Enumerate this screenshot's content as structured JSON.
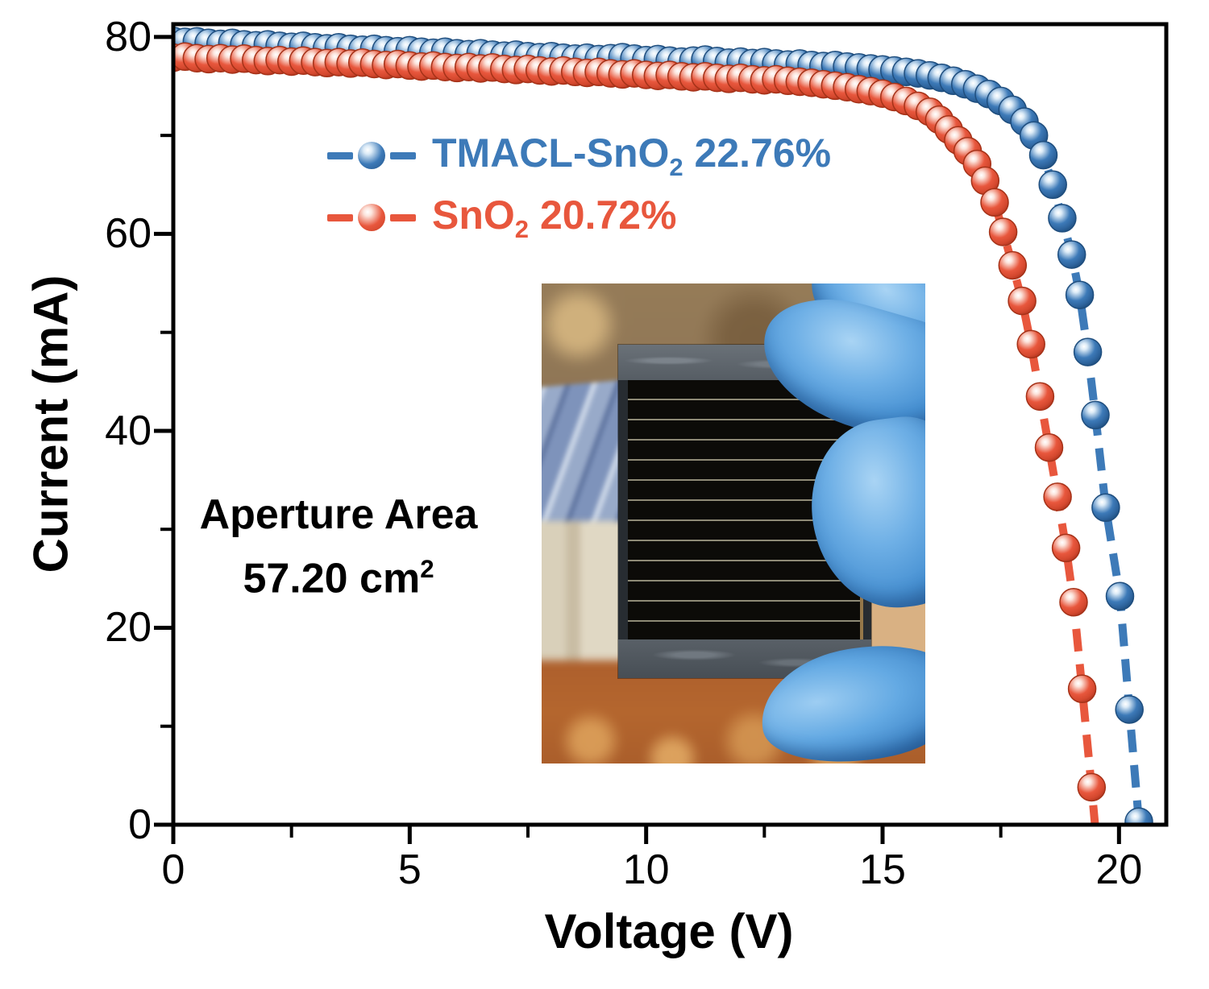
{
  "chart_data": {
    "type": "line",
    "title": "",
    "xlabel": "Voltage (V)",
    "ylabel": "Current (mA)",
    "xlim": [
      0,
      21
    ],
    "ylim": [
      0,
      81.3
    ],
    "x_ticks": [
      0,
      5,
      10,
      15,
      20
    ],
    "x_minor_ticks": [
      2.5,
      7.5,
      12.5,
      17.5
    ],
    "y_ticks": [
      0,
      20,
      40,
      60,
      80
    ],
    "y_minor_ticks": [
      10,
      30,
      50,
      70
    ],
    "grid": false,
    "legend_position": "upper-left-inside",
    "axis_color": "#000000",
    "background_color": "#ffffff",
    "series": [
      {
        "name": "TMACL-SnO2 22.76%",
        "label_main": "TMACL-SnO",
        "label_sub": "2",
        "label_tail": " 22.76%",
        "color": "#3d7ab8",
        "color_dark": "#1f4e7e",
        "gradient": [
          "#ffffff",
          "#dcebf7",
          "#3d7ab8",
          "#2d639c",
          "#1f4e7e"
        ],
        "marker": "sphere",
        "line_style": "dashed",
        "points": [
          [
            0,
            79.6
          ],
          [
            0.25,
            79.5
          ],
          [
            0.5,
            79.55
          ],
          [
            0.75,
            79.4
          ],
          [
            1,
            79.3
          ],
          [
            1.25,
            79.4
          ],
          [
            1.5,
            79.25
          ],
          [
            1.75,
            79.15
          ],
          [
            2,
            79.25
          ],
          [
            2.25,
            79.1
          ],
          [
            2.5,
            79.0
          ],
          [
            2.75,
            79.1
          ],
          [
            3,
            78.95
          ],
          [
            3.25,
            78.85
          ],
          [
            3.5,
            78.95
          ],
          [
            3.75,
            78.8
          ],
          [
            4,
            78.7
          ],
          [
            4.25,
            78.8
          ],
          [
            4.5,
            78.65
          ],
          [
            4.75,
            78.55
          ],
          [
            5,
            78.65
          ],
          [
            5.25,
            78.5
          ],
          [
            5.5,
            78.4
          ],
          [
            5.75,
            78.5
          ],
          [
            6,
            78.35
          ],
          [
            6.25,
            78.25
          ],
          [
            6.5,
            78.35
          ],
          [
            6.75,
            78.2
          ],
          [
            7,
            78.1
          ],
          [
            7.25,
            78.2
          ],
          [
            7.5,
            78.05
          ],
          [
            7.75,
            77.95
          ],
          [
            8,
            78.05
          ],
          [
            8.25,
            77.9
          ],
          [
            8.5,
            77.8
          ],
          [
            8.75,
            77.9
          ],
          [
            9,
            77.75
          ],
          [
            9.25,
            77.85
          ],
          [
            9.5,
            77.95
          ],
          [
            9.75,
            77.8
          ],
          [
            10,
            77.65
          ],
          [
            10.25,
            77.75
          ],
          [
            10.5,
            77.6
          ],
          [
            10.75,
            77.5
          ],
          [
            11,
            77.6
          ],
          [
            11.25,
            77.7
          ],
          [
            11.5,
            77.55
          ],
          [
            11.75,
            77.4
          ],
          [
            12,
            77.5
          ],
          [
            12.25,
            77.35
          ],
          [
            12.5,
            77.45
          ],
          [
            12.75,
            77.3
          ],
          [
            13,
            77.2
          ],
          [
            13.25,
            77.3
          ],
          [
            13.5,
            77.15
          ],
          [
            13.75,
            77.05
          ],
          [
            14,
            77.15
          ],
          [
            14.25,
            77.0
          ],
          [
            14.5,
            76.9
          ],
          [
            14.75,
            76.8
          ],
          [
            15,
            76.7
          ],
          [
            15.25,
            76.6
          ],
          [
            15.5,
            76.45
          ],
          [
            15.75,
            76.3
          ],
          [
            16,
            76.1
          ],
          [
            16.25,
            75.85
          ],
          [
            16.5,
            75.55
          ],
          [
            16.75,
            75.2
          ],
          [
            17,
            74.75
          ],
          [
            17.25,
            74.2
          ],
          [
            17.5,
            73.5
          ],
          [
            17.75,
            72.6
          ],
          [
            18,
            71.4
          ],
          [
            18.2,
            70.0
          ],
          [
            18.4,
            68.0
          ],
          [
            18.6,
            65.0
          ],
          [
            18.8,
            61.6
          ],
          [
            19,
            57.9
          ],
          [
            19.17,
            53.8
          ],
          [
            19.34,
            48.0
          ],
          [
            19.5,
            41.6
          ],
          [
            19.72,
            32.2
          ],
          [
            20.02,
            23.2
          ],
          [
            20.22,
            11.7
          ],
          [
            20.42,
            0.3
          ]
        ]
      },
      {
        "name": "SnO2 20.72%",
        "label_main": "SnO",
        "label_sub": "2",
        "label_tail": " 20.72%",
        "color": "#e8573d",
        "color_dark": "#a53218",
        "gradient": [
          "#ffffff",
          "#fcE4dc",
          "#e8573d",
          "#d4482e",
          "#b03520"
        ],
        "marker": "sphere",
        "line_style": "dashed",
        "points": [
          [
            0,
            77.9
          ],
          [
            0.25,
            78.0
          ],
          [
            0.5,
            77.85
          ],
          [
            0.75,
            77.75
          ],
          [
            1,
            77.85
          ],
          [
            1.25,
            77.7
          ],
          [
            1.5,
            77.8
          ],
          [
            1.75,
            77.65
          ],
          [
            2,
            77.55
          ],
          [
            2.25,
            77.65
          ],
          [
            2.5,
            77.5
          ],
          [
            2.75,
            77.6
          ],
          [
            3,
            77.45
          ],
          [
            3.25,
            77.35
          ],
          [
            3.5,
            77.45
          ],
          [
            3.75,
            77.3
          ],
          [
            4,
            77.4
          ],
          [
            4.25,
            77.25
          ],
          [
            4.5,
            77.15
          ],
          [
            4.75,
            77.25
          ],
          [
            5,
            77.1
          ],
          [
            5.25,
            77.0
          ],
          [
            5.5,
            77.1
          ],
          [
            5.75,
            76.95
          ],
          [
            6,
            76.85
          ],
          [
            6.25,
            76.95
          ],
          [
            6.5,
            76.8
          ],
          [
            6.75,
            76.9
          ],
          [
            7,
            76.75
          ],
          [
            7.25,
            76.65
          ],
          [
            7.5,
            76.75
          ],
          [
            7.75,
            76.6
          ],
          [
            8,
            76.5
          ],
          [
            8.25,
            76.6
          ],
          [
            8.5,
            76.45
          ],
          [
            8.75,
            76.35
          ],
          [
            9,
            76.45
          ],
          [
            9.25,
            76.3
          ],
          [
            9.5,
            76.2
          ],
          [
            9.75,
            76.3
          ],
          [
            10,
            76.15
          ],
          [
            10.25,
            76.05
          ],
          [
            10.5,
            76.15
          ],
          [
            10.75,
            76.0
          ],
          [
            11,
            75.9
          ],
          [
            11.25,
            76.0
          ],
          [
            11.5,
            75.85
          ],
          [
            11.75,
            75.75
          ],
          [
            12,
            75.85
          ],
          [
            12.25,
            75.7
          ],
          [
            12.5,
            75.6
          ],
          [
            12.75,
            75.7
          ],
          [
            13,
            75.55
          ],
          [
            13.25,
            75.45
          ],
          [
            13.5,
            75.35
          ],
          [
            13.75,
            75.2
          ],
          [
            14,
            75.05
          ],
          [
            14.25,
            74.9
          ],
          [
            14.5,
            74.7
          ],
          [
            14.75,
            74.5
          ],
          [
            15,
            74.25
          ],
          [
            15.25,
            73.9
          ],
          [
            15.5,
            73.5
          ],
          [
            15.75,
            73.0
          ],
          [
            16,
            72.4
          ],
          [
            16.2,
            71.6
          ],
          [
            16.4,
            70.6
          ],
          [
            16.6,
            69.5
          ],
          [
            16.8,
            68.4
          ],
          [
            17,
            67.1
          ],
          [
            17.17,
            65.4
          ],
          [
            17.37,
            63.2
          ],
          [
            17.55,
            60.2
          ],
          [
            17.75,
            56.8
          ],
          [
            17.95,
            53.2
          ],
          [
            18.14,
            48.8
          ],
          [
            18.33,
            43.5
          ],
          [
            18.52,
            38.3
          ],
          [
            18.7,
            33.3
          ],
          [
            18.88,
            28.1
          ],
          [
            19.04,
            22.6
          ],
          [
            19.22,
            13.8
          ],
          [
            19.42,
            3.8
          ],
          [
            19.53,
            -2,
            0
          ]
        ]
      }
    ]
  },
  "annotation": {
    "line1": "Aperture Area",
    "line2_main": "57.20 cm",
    "line2_sup": "2"
  },
  "inset": {
    "description": "Photograph of a black perovskite solar mini-module with horizontal cell stripes and grey tape edges, held by a hand in a blue nitrile glove; blue photovoltaic panel, beige building and orange ground blurred in the background."
  }
}
